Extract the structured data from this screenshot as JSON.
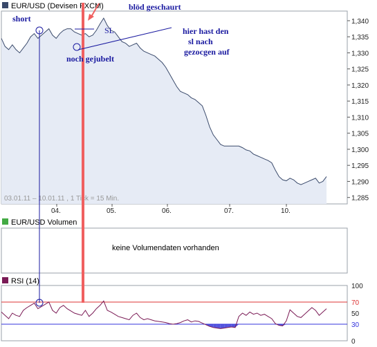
{
  "panels": {
    "price_title": "EUR/USD (Devisen FXCM)",
    "volume_title": "EUR/USD Volumen",
    "volume_empty": "keine Volumendaten vorhanden",
    "rsi_title": "RSI (14)",
    "info": "03.01.11 – 10.01.11 , 1 Tick = 15 Min."
  },
  "annotations": {
    "short": "short",
    "bad_sl": "blöd geschaurt",
    "sl": "SL",
    "cheered": "noch gejubelt",
    "moved_sl_line1": "hier hast den",
    "moved_sl_line2": "sl nach",
    "moved_sl_line3": "gezocgen auf"
  },
  "colors": {
    "price_line": "#3a4a6b",
    "area_fill": "#e6ebf5",
    "rsi_line": "#7a1a55",
    "rsi_fill": "#5555dd",
    "annotation_blue": "#1a1aa0",
    "annotation_red": "#f06060",
    "level_70": "#dd3333",
    "level_30": "#3333dd"
  },
  "chart_data": [
    {
      "type": "line",
      "title": "EUR/USD (Devisen FXCM)",
      "x_categories": [
        "04.",
        "05.",
        "06.",
        "07.",
        "10."
      ],
      "ylim": [
        1.283,
        1.343
      ],
      "y_ticks": [
        "1,285",
        "1,290",
        "1,295",
        "1,300",
        "1,305",
        "1,310",
        "1,315",
        "1,320",
        "1,325",
        "1,330",
        "1,335",
        "1,340"
      ],
      "y_tick_values": [
        1.285,
        1.29,
        1.295,
        1.3,
        1.305,
        1.31,
        1.315,
        1.32,
        1.325,
        1.33,
        1.335,
        1.34
      ],
      "series": [
        {
          "points": [
            [
              0,
              1.3345
            ],
            [
              2,
              1.332
            ],
            [
              4,
              1.331
            ],
            [
              6,
              1.3325
            ],
            [
              8,
              1.331
            ],
            [
              10,
              1.33
            ],
            [
              12,
              1.3315
            ],
            [
              14,
              1.333
            ],
            [
              16,
              1.335
            ],
            [
              18,
              1.336
            ],
            [
              20,
              1.3345
            ],
            [
              22,
              1.3355
            ],
            [
              24,
              1.3365
            ],
            [
              26,
              1.3375
            ],
            [
              28,
              1.3355
            ],
            [
              30,
              1.3345
            ],
            [
              32,
              1.336
            ],
            [
              34,
              1.337
            ],
            [
              36,
              1.3375
            ],
            [
              38,
              1.3375
            ],
            [
              40,
              1.3365
            ],
            [
              42,
              1.336
            ],
            [
              44,
              1.3355
            ],
            [
              46,
              1.336
            ],
            [
              48,
              1.335
            ],
            [
              50,
              1.3355
            ],
            [
              52,
              1.337
            ],
            [
              54,
              1.339
            ],
            [
              56,
              1.3408
            ],
            [
              58,
              1.3385
            ],
            [
              60,
              1.337
            ],
            [
              62,
              1.3365
            ],
            [
              64,
              1.335
            ],
            [
              66,
              1.3335
            ],
            [
              68,
              1.333
            ],
            [
              70,
              1.332
            ],
            [
              72,
              1.3325
            ],
            [
              74,
              1.333
            ],
            [
              76,
              1.3315
            ],
            [
              78,
              1.3305
            ],
            [
              80,
              1.33
            ],
            [
              82,
              1.3295
            ],
            [
              84,
              1.329
            ],
            [
              86,
              1.328
            ],
            [
              88,
              1.327
            ],
            [
              90,
              1.3255
            ],
            [
              92,
              1.3235
            ],
            [
              94,
              1.3215
            ],
            [
              96,
              1.3195
            ],
            [
              98,
              1.318
            ],
            [
              100,
              1.3175
            ],
            [
              102,
              1.317
            ],
            [
              104,
              1.316
            ],
            [
              106,
              1.3155
            ],
            [
              108,
              1.3145
            ],
            [
              110,
              1.3135
            ],
            [
              112,
              1.3105
            ],
            [
              114,
              1.307
            ],
            [
              116,
              1.3045
            ],
            [
              118,
              1.303
            ],
            [
              120,
              1.3015
            ],
            [
              122,
              1.301
            ],
            [
              124,
              1.301
            ],
            [
              126,
              1.301
            ],
            [
              128,
              1.301
            ],
            [
              130,
              1.301
            ],
            [
              132,
              1.3005
            ],
            [
              134,
              1.2998
            ],
            [
              136,
              1.2995
            ],
            [
              138,
              1.2985
            ],
            [
              140,
              1.298
            ],
            [
              142,
              1.2975
            ],
            [
              144,
              1.297
            ],
            [
              146,
              1.2965
            ],
            [
              148,
              1.2958
            ],
            [
              150,
              1.2935
            ],
            [
              152,
              1.2915
            ],
            [
              154,
              1.2905
            ],
            [
              156,
              1.2902
            ],
            [
              158,
              1.291
            ],
            [
              160,
              1.2905
            ],
            [
              162,
              1.2895
            ],
            [
              164,
              1.289
            ],
            [
              166,
              1.2895
            ],
            [
              168,
              1.29
            ],
            [
              170,
              1.2905
            ],
            [
              172,
              1.291
            ],
            [
              174,
              1.2895
            ],
            [
              176,
              1.29
            ],
            [
              178,
              1.2915
            ]
          ]
        }
      ]
    },
    {
      "type": "line",
      "title": "RSI (14)",
      "ylim": [
        0,
        100
      ],
      "y_ticks": [
        "0",
        "30",
        "50",
        "70",
        "100"
      ],
      "y_tick_values": [
        0,
        30,
        50,
        70,
        100
      ],
      "levels": [
        30,
        70
      ],
      "series": [
        {
          "points": [
            [
              0,
              52
            ],
            [
              2,
              46
            ],
            [
              4,
              40
            ],
            [
              6,
              50
            ],
            [
              8,
              46
            ],
            [
              10,
              44
            ],
            [
              12,
              55
            ],
            [
              14,
              60
            ],
            [
              16,
              64
            ],
            [
              18,
              68
            ],
            [
              20,
              58
            ],
            [
              22,
              62
            ],
            [
              24,
              66
            ],
            [
              26,
              70
            ],
            [
              28,
              55
            ],
            [
              30,
              50
            ],
            [
              32,
              60
            ],
            [
              34,
              64
            ],
            [
              36,
              58
            ],
            [
              38,
              54
            ],
            [
              40,
              50
            ],
            [
              42,
              48
            ],
            [
              44,
              46
            ],
            [
              46,
              55
            ],
            [
              48,
              44
            ],
            [
              50,
              50
            ],
            [
              52,
              58
            ],
            [
              54,
              64
            ],
            [
              56,
              72
            ],
            [
              58,
              55
            ],
            [
              60,
              52
            ],
            [
              62,
              48
            ],
            [
              64,
              44
            ],
            [
              66,
              42
            ],
            [
              68,
              40
            ],
            [
              70,
              38
            ],
            [
              72,
              46
            ],
            [
              74,
              50
            ],
            [
              76,
              42
            ],
            [
              78,
              38
            ],
            [
              80,
              40
            ],
            [
              82,
              38
            ],
            [
              84,
              36
            ],
            [
              86,
              35
            ],
            [
              88,
              34
            ],
            [
              90,
              33
            ],
            [
              92,
              31
            ],
            [
              94,
              30
            ],
            [
              96,
              31
            ],
            [
              98,
              33
            ],
            [
              100,
              36
            ],
            [
              102,
              38
            ],
            [
              104,
              34
            ],
            [
              106,
              36
            ],
            [
              108,
              35
            ],
            [
              110,
              32
            ],
            [
              112,
              29
            ],
            [
              114,
              26
            ],
            [
              116,
              24
            ],
            [
              118,
              23
            ],
            [
              120,
              22
            ],
            [
              122,
              23
            ],
            [
              124,
              24
            ],
            [
              126,
              25
            ],
            [
              128,
              24
            ],
            [
              130,
              44
            ],
            [
              132,
              50
            ],
            [
              134,
              46
            ],
            [
              136,
              52
            ],
            [
              138,
              48
            ],
            [
              140,
              50
            ],
            [
              142,
              46
            ],
            [
              144,
              48
            ],
            [
              146,
              44
            ],
            [
              148,
              40
            ],
            [
              150,
              31
            ],
            [
              152,
              28
            ],
            [
              154,
              27
            ],
            [
              156,
              36
            ],
            [
              158,
              56
            ],
            [
              160,
              50
            ],
            [
              162,
              44
            ],
            [
              164,
              42
            ],
            [
              166,
              48
            ],
            [
              168,
              54
            ],
            [
              170,
              60
            ],
            [
              172,
              55
            ],
            [
              174,
              46
            ],
            [
              176,
              52
            ],
            [
              178,
              58
            ]
          ]
        }
      ]
    }
  ]
}
